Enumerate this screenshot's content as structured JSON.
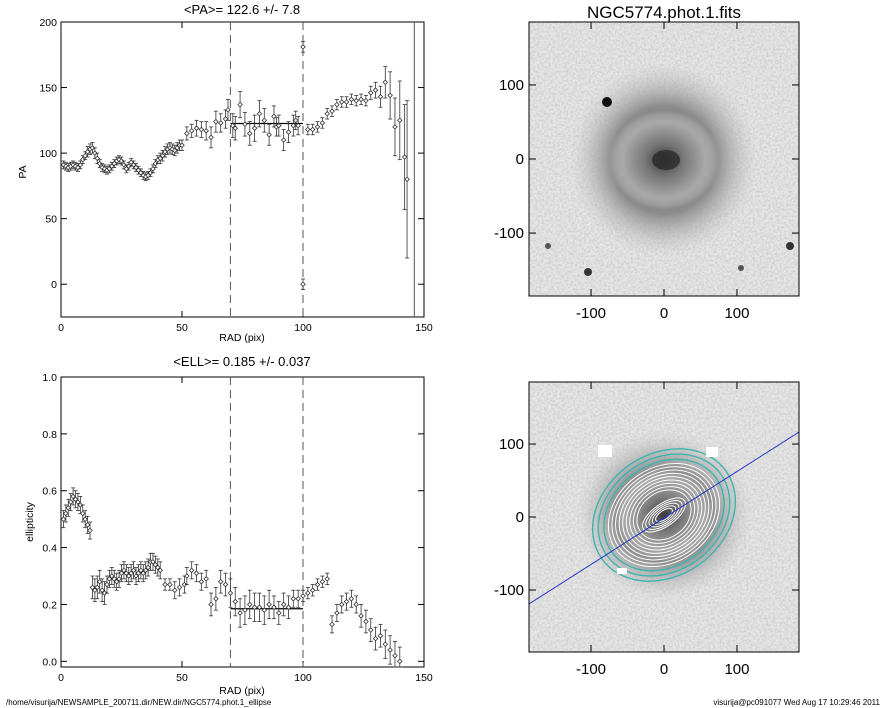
{
  "footer": {
    "path": "/home/visurija/NEWSAMPLE_200711.dir/NEW.dir/NGC5774.phot.1_ellipse",
    "user_time": "visurija@pc091077  Wed Aug 17 10:29:46 2011"
  },
  "image_title": "NGC5774.phot.1.fits",
  "image_axes": {
    "range": [
      -185,
      185
    ],
    "x_ticks": [
      -100,
      0,
      100
    ],
    "y_ticks": [
      100,
      0,
      -100
    ]
  },
  "colors": {
    "axes": "#000000",
    "data": "#333333",
    "contour_inner": "#ffffff",
    "contour_outer": "#3cb4b0",
    "pa_line": "#2233cc"
  },
  "chart_data": [
    {
      "type": "scatter",
      "title": "<PA>= 122.6 +/-   7.8",
      "xlabel": "RAD (pix)",
      "ylabel": "PA",
      "xlim": [
        0,
        150
      ],
      "ylim": [
        -25,
        200
      ],
      "x_ticks": [
        0,
        50,
        100,
        150
      ],
      "y_ticks": [
        0,
        50,
        100,
        150,
        200
      ],
      "vlines": [
        70,
        100,
        146
      ],
      "mean_segment": {
        "x": [
          70,
          100
        ],
        "y": 122.6
      },
      "points": [
        [
          1,
          91,
          3
        ],
        [
          2,
          90,
          3
        ],
        [
          3,
          89,
          3
        ],
        [
          4,
          90,
          3
        ],
        [
          5,
          91,
          3
        ],
        [
          6,
          90,
          3
        ],
        [
          7,
          89,
          3
        ],
        [
          8,
          91,
          3
        ],
        [
          9,
          95,
          3
        ],
        [
          10,
          98,
          3
        ],
        [
          11,
          101,
          4
        ],
        [
          12,
          103,
          4
        ],
        [
          13,
          104,
          4
        ],
        [
          14,
          100,
          4
        ],
        [
          15,
          96,
          4
        ],
        [
          16,
          92,
          3
        ],
        [
          17,
          89,
          3
        ],
        [
          18,
          88,
          3
        ],
        [
          19,
          87,
          3
        ],
        [
          20,
          88,
          3
        ],
        [
          21,
          90,
          3
        ],
        [
          22,
          92,
          3
        ],
        [
          23,
          94,
          3
        ],
        [
          24,
          95,
          3
        ],
        [
          25,
          94,
          3
        ],
        [
          26,
          91,
          3
        ],
        [
          27,
          88,
          3
        ],
        [
          28,
          90,
          3
        ],
        [
          29,
          93,
          3
        ],
        [
          30,
          91,
          3
        ],
        [
          31,
          89,
          3
        ],
        [
          32,
          87,
          3
        ],
        [
          33,
          85,
          3
        ],
        [
          34,
          83,
          3
        ],
        [
          35,
          82,
          3
        ],
        [
          36,
          83,
          3
        ],
        [
          37,
          85,
          3
        ],
        [
          38,
          88,
          3
        ],
        [
          39,
          92,
          3
        ],
        [
          40,
          95,
          3
        ],
        [
          41,
          96,
          4
        ],
        [
          42,
          98,
          4
        ],
        [
          43,
          101,
          4
        ],
        [
          44,
          103,
          4
        ],
        [
          45,
          104,
          4
        ],
        [
          46,
          103,
          4
        ],
        [
          47,
          102,
          4
        ],
        [
          48,
          104,
          4
        ],
        [
          49,
          106,
          4
        ],
        [
          50,
          106,
          4
        ],
        [
          52,
          115,
          5
        ],
        [
          54,
          117,
          5
        ],
        [
          56,
          119,
          6
        ],
        [
          58,
          118,
          6
        ],
        [
          60,
          117,
          7
        ],
        [
          62,
          112,
          8
        ],
        [
          64,
          124,
          8
        ],
        [
          66,
          123,
          7
        ],
        [
          68,
          126,
          7
        ],
        [
          69,
          133,
          8
        ],
        [
          71,
          121,
          9
        ],
        [
          72,
          119,
          9
        ],
        [
          74,
          137,
          10
        ],
        [
          76,
          122,
          9
        ],
        [
          78,
          115,
          9
        ],
        [
          80,
          119,
          10
        ],
        [
          82,
          130,
          10
        ],
        [
          84,
          125,
          9
        ],
        [
          86,
          114,
          8
        ],
        [
          88,
          128,
          8
        ],
        [
          89,
          120,
          7
        ],
        [
          90,
          121,
          8
        ],
        [
          92,
          110,
          8
        ],
        [
          94,
          116,
          8
        ],
        [
          96,
          121,
          8
        ],
        [
          97,
          125,
          7
        ],
        [
          98,
          121,
          7
        ],
        [
          100,
          181,
          4
        ],
        [
          100,
          0,
          4
        ],
        [
          102,
          118,
          4
        ],
        [
          104,
          118,
          4
        ],
        [
          106,
          120,
          4
        ],
        [
          108,
          123,
          4
        ],
        [
          110,
          130,
          4
        ],
        [
          112,
          132,
          4
        ],
        [
          114,
          137,
          4
        ],
        [
          116,
          139,
          4
        ],
        [
          118,
          139,
          4
        ],
        [
          120,
          141,
          4
        ],
        [
          122,
          140,
          4
        ],
        [
          124,
          141,
          4
        ],
        [
          126,
          140,
          4
        ],
        [
          128,
          146,
          5
        ],
        [
          130,
          148,
          6
        ],
        [
          132,
          143,
          8
        ],
        [
          134,
          154,
          12
        ],
        [
          136,
          144,
          18
        ],
        [
          138,
          120,
          22
        ],
        [
          140,
          125,
          30
        ],
        [
          142,
          97,
          40
        ],
        [
          143,
          80,
          60
        ]
      ]
    },
    {
      "type": "scatter",
      "title": "<ELL>= 0.185 +/-  0.037",
      "xlabel": "RAD (pix)",
      "ylabel": "ellipticity",
      "xlim": [
        0,
        150
      ],
      "ylim": [
        -0.02,
        1.0
      ],
      "x_ticks": [
        0,
        50,
        100,
        150
      ],
      "y_ticks": [
        0.0,
        0.2,
        0.4,
        0.6,
        0.8,
        1.0
      ],
      "vlines": [
        70,
        100
      ],
      "mean_segment": {
        "x": [
          70,
          100
        ],
        "y": 0.185
      },
      "points": [
        [
          1,
          0.5,
          0.03
        ],
        [
          2,
          0.52,
          0.03
        ],
        [
          3,
          0.54,
          0.03
        ],
        [
          4,
          0.56,
          0.03
        ],
        [
          5,
          0.58,
          0.03
        ],
        [
          6,
          0.57,
          0.03
        ],
        [
          7,
          0.56,
          0.03
        ],
        [
          8,
          0.55,
          0.03
        ],
        [
          9,
          0.52,
          0.03
        ],
        [
          10,
          0.5,
          0.03
        ],
        [
          11,
          0.48,
          0.03
        ],
        [
          12,
          0.46,
          0.03
        ],
        [
          13,
          0.26,
          0.04
        ],
        [
          14,
          0.25,
          0.04
        ],
        [
          15,
          0.26,
          0.04
        ],
        [
          16,
          0.28,
          0.04
        ],
        [
          17,
          0.25,
          0.04
        ],
        [
          18,
          0.24,
          0.04
        ],
        [
          19,
          0.27,
          0.03
        ],
        [
          20,
          0.29,
          0.03
        ],
        [
          21,
          0.3,
          0.03
        ],
        [
          22,
          0.29,
          0.03
        ],
        [
          23,
          0.28,
          0.03
        ],
        [
          24,
          0.29,
          0.03
        ],
        [
          25,
          0.31,
          0.03
        ],
        [
          26,
          0.32,
          0.03
        ],
        [
          27,
          0.31,
          0.03
        ],
        [
          28,
          0.3,
          0.03
        ],
        [
          29,
          0.31,
          0.03
        ],
        [
          30,
          0.32,
          0.03
        ],
        [
          31,
          0.3,
          0.03
        ],
        [
          32,
          0.31,
          0.03
        ],
        [
          33,
          0.32,
          0.03
        ],
        [
          34,
          0.31,
          0.03
        ],
        [
          35,
          0.32,
          0.03
        ],
        [
          36,
          0.33,
          0.03
        ],
        [
          37,
          0.35,
          0.03
        ],
        [
          38,
          0.35,
          0.03
        ],
        [
          39,
          0.34,
          0.03
        ],
        [
          40,
          0.33,
          0.03
        ],
        [
          41,
          0.32,
          0.03
        ],
        [
          43,
          0.27,
          0.02
        ],
        [
          45,
          0.27,
          0.02
        ],
        [
          47,
          0.25,
          0.03
        ],
        [
          49,
          0.26,
          0.03
        ],
        [
          51,
          0.27,
          0.03
        ],
        [
          52,
          0.3,
          0.03
        ],
        [
          54,
          0.32,
          0.03
        ],
        [
          56,
          0.31,
          0.03
        ],
        [
          58,
          0.28,
          0.03
        ],
        [
          60,
          0.29,
          0.03
        ],
        [
          62,
          0.2,
          0.04
        ],
        [
          64,
          0.22,
          0.04
        ],
        [
          66,
          0.28,
          0.04
        ],
        [
          68,
          0.27,
          0.04
        ],
        [
          70,
          0.24,
          0.05
        ],
        [
          72,
          0.21,
          0.05
        ],
        [
          74,
          0.17,
          0.05
        ],
        [
          76,
          0.18,
          0.05
        ],
        [
          78,
          0.2,
          0.05
        ],
        [
          80,
          0.19,
          0.05
        ],
        [
          82,
          0.19,
          0.05
        ],
        [
          84,
          0.18,
          0.05
        ],
        [
          86,
          0.2,
          0.05
        ],
        [
          88,
          0.19,
          0.04
        ],
        [
          90,
          0.17,
          0.04
        ],
        [
          92,
          0.2,
          0.04
        ],
        [
          94,
          0.19,
          0.04
        ],
        [
          96,
          0.22,
          0.03
        ],
        [
          98,
          0.22,
          0.03
        ],
        [
          100,
          0.23,
          0.02
        ],
        [
          102,
          0.24,
          0.02
        ],
        [
          104,
          0.25,
          0.02
        ],
        [
          106,
          0.27,
          0.02
        ],
        [
          108,
          0.28,
          0.02
        ],
        [
          110,
          0.29,
          0.02
        ],
        [
          112,
          0.13,
          0.03
        ],
        [
          114,
          0.17,
          0.03
        ],
        [
          116,
          0.2,
          0.03
        ],
        [
          118,
          0.21,
          0.03
        ],
        [
          120,
          0.22,
          0.03
        ],
        [
          122,
          0.2,
          0.03
        ],
        [
          124,
          0.16,
          0.04
        ],
        [
          126,
          0.14,
          0.04
        ],
        [
          128,
          0.11,
          0.04
        ],
        [
          130,
          0.08,
          0.04
        ],
        [
          132,
          0.09,
          0.04
        ],
        [
          134,
          0.06,
          0.05
        ],
        [
          136,
          0.04,
          0.05
        ],
        [
          138,
          0.02,
          0.05
        ],
        [
          140,
          0.0,
          0.05
        ]
      ]
    }
  ]
}
